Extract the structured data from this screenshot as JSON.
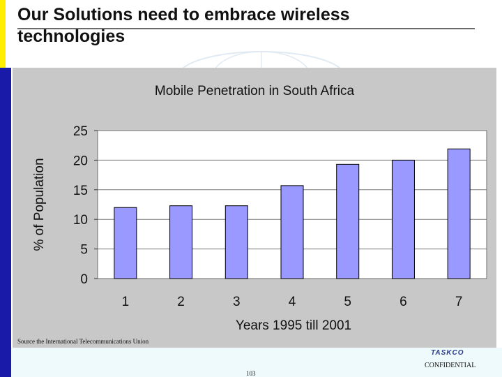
{
  "slide": {
    "title": "Our Solutions need to embrace wireless technologies",
    "source": "Source the International Telecommunications Union",
    "logo": "TASKCO",
    "confidential": "CONFIDENTIAL",
    "page_number": "103"
  },
  "colors": {
    "bar_fill": "#9999ff",
    "bar_stroke": "#000000",
    "plot_background": "#ffffff",
    "chart_background": "#c8c8c8",
    "left_bar_blue": "#1a1aa8",
    "left_bar_yellow": "#ffee00"
  },
  "chart_data": {
    "type": "bar",
    "title": "Mobile Penetration in South Africa",
    "xlabel": "Years 1995 till 2001",
    "ylabel": "% of Population",
    "categories": [
      "1",
      "2",
      "3",
      "4",
      "5",
      "6",
      "7"
    ],
    "values": [
      12,
      12.3,
      12.3,
      15.7,
      19.3,
      20,
      21.9
    ],
    "ylim": [
      0,
      25
    ],
    "yticks": [
      0,
      5,
      10,
      15,
      20,
      25
    ],
    "grid": true,
    "legend": "none"
  }
}
